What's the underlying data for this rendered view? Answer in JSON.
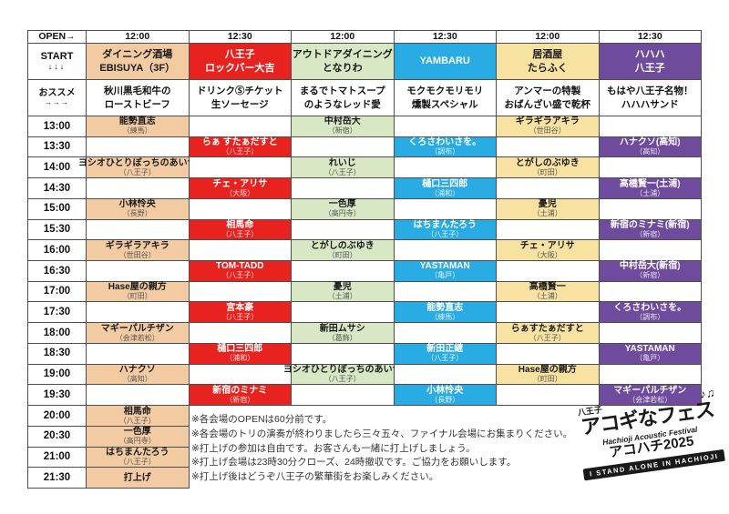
{
  "header": {
    "open_label": "OPEN→",
    "start_label": "START",
    "start_arrows": "↓↓↓",
    "osusume_label": "おススメ",
    "osusume_arrows": "→→→"
  },
  "venues": [
    {
      "open": "12:00",
      "name": "ダイニング酒場\nEBISUYA（3F）",
      "recommend": "秋川黒毛和牛の\nローストビーフ",
      "color": "#f3cba3",
      "text_color": "#1a1a1a"
    },
    {
      "open": "12:30",
      "name": "八王子\nロックバー大吉",
      "recommend": "ドリンクⓈチケット\n生ソーセージ",
      "color": "#e8231f",
      "text_color": "#ffffff"
    },
    {
      "open": "12:00",
      "name": "アウトドアダイニング\nとなりわ",
      "recommend": "まるでトマトスープ\nのようなレッド愛",
      "color": "#d8e7c4",
      "text_color": "#1a1a1a"
    },
    {
      "open": "12:30",
      "name": "YAMBARU",
      "recommend": "モクモクモリモリ\n燻製スペシャル",
      "color": "#29ace4",
      "text_color": "#ffffff"
    },
    {
      "open": "12:00",
      "name": "居酒屋\nたらふく",
      "recommend": "アンマーの特製\nおばんざい盛で乾杯",
      "color": "#f8e2a2",
      "text_color": "#1a1a1a"
    },
    {
      "open": "12:30",
      "name": "ハハハ\n八王子",
      "recommend": "もはや八王子名物！\nハハハサンド",
      "color": "#6e4b9d",
      "text_color": "#ffffff"
    }
  ],
  "schedule": [
    {
      "time": "13:00",
      "slots": [
        {
          "name": "能勢直志",
          "place": "（練馬）"
        },
        null,
        {
          "name": "中村岳大",
          "place": "（新宿）"
        },
        null,
        {
          "name": "ギラギラアキラ",
          "place": "（世田谷）"
        },
        null
      ]
    },
    {
      "time": "13:30",
      "slots": [
        null,
        {
          "name": "らぁ すたぁだすと",
          "place": "（八王子）"
        },
        null,
        {
          "name": "くろさわいさを。",
          "place": "（調布）"
        },
        null,
        {
          "name": "ハナクソ(高知)",
          "place": "（高知）"
        }
      ]
    },
    {
      "time": "14:00",
      "slots": [
        {
          "name": "ヨシオひとりぼっちのあいつ",
          "place": "（八王子）"
        },
        null,
        {
          "name": "れいじ",
          "place": "（八王子）"
        },
        null,
        {
          "name": "とがしのぶゆき",
          "place": "（町田）"
        },
        null
      ]
    },
    {
      "time": "14:30",
      "slots": [
        null,
        {
          "name": "チェ・アリサ",
          "place": "（大阪）"
        },
        null,
        {
          "name": "樋口三四郎",
          "place": "（浦和）"
        },
        null,
        {
          "name": "高橋賢一(土浦)",
          "place": "（土浦）"
        }
      ]
    },
    {
      "time": "15:00",
      "slots": [
        {
          "name": "小林怜央",
          "place": "（長野）"
        },
        null,
        {
          "name": "一色厚",
          "place": "（高円寺）"
        },
        null,
        {
          "name": "憂児",
          "place": "（土浦）"
        },
        null
      ]
    },
    {
      "time": "15:30",
      "slots": [
        null,
        {
          "name": "相馬命",
          "place": "（八王子）"
        },
        null,
        {
          "name": "はちまんたろう",
          "place": "（八王子）"
        },
        null,
        {
          "name": "新宿のミナミ(新宿)",
          "place": "（新宿）"
        }
      ]
    },
    {
      "time": "16:00",
      "slots": [
        {
          "name": "ギラギラアキラ",
          "place": "（世田谷）"
        },
        null,
        {
          "name": "とがしのぶゆき",
          "place": "（町田）"
        },
        null,
        {
          "name": "チェ・アリサ",
          "place": "（大阪）"
        },
        null
      ]
    },
    {
      "time": "16:30",
      "slots": [
        null,
        {
          "name": "TOM-TADD",
          "place": "（八王子）"
        },
        null,
        {
          "name": "YASTAMAN",
          "place": "（亀戸）"
        },
        null,
        {
          "name": "中村岳大(新宿)",
          "place": "（新宿）"
        }
      ]
    },
    {
      "time": "17:00",
      "slots": [
        {
          "name": "Hase屋の親方",
          "place": "（町田）"
        },
        null,
        {
          "name": "憂児",
          "place": "（土浦）"
        },
        null,
        {
          "name": "高橋賢一",
          "place": "（土浦）"
        },
        null
      ]
    },
    {
      "time": "17:30",
      "slots": [
        null,
        {
          "name": "宮本豪",
          "place": "（八王子）"
        },
        null,
        {
          "name": "能勢直志",
          "place": "（練馬）"
        },
        null,
        {
          "name": "くろさわいさを。",
          "place": "（調布）"
        }
      ]
    },
    {
      "time": "18:00",
      "slots": [
        {
          "name": "マギーパルチザン",
          "place": "（会津若松）"
        },
        null,
        {
          "name": "新田ムサシ",
          "place": "（葛飾）"
        },
        null,
        {
          "name": "らぁすたぁだすと",
          "place": "（八王子）"
        },
        null
      ]
    },
    {
      "time": "18:30",
      "slots": [
        null,
        {
          "name": "樋口三四郎",
          "place": "（浦和）"
        },
        null,
        {
          "name": "新田正継",
          "place": "（八王子）"
        },
        null,
        {
          "name": "YASTAMAN",
          "place": "（亀戸）"
        }
      ]
    },
    {
      "time": "19:00",
      "slots": [
        {
          "name": "ハナクソ",
          "place": "（高知）"
        },
        null,
        {
          "name": "ヨシオひとりぼっちのあいつ",
          "place": "（八王子）"
        },
        null,
        {
          "name": "Hase屋の親方",
          "place": "（町田）"
        },
        null
      ]
    },
    {
      "time": "19:30",
      "slots": [
        null,
        {
          "name": "新宿のミナミ",
          "place": "（新宿）"
        },
        null,
        {
          "name": "小林怜央",
          "place": "（長野）"
        },
        null,
        {
          "name": "マギーパルチザン",
          "place": "（会津若松）"
        }
      ]
    },
    {
      "time": "20:00",
      "slots": [
        {
          "name": "相馬命",
          "place": "（八王子）"
        },
        null,
        null,
        null,
        null,
        null
      ]
    },
    {
      "time": "20:30",
      "slots": [
        {
          "name": "一色厚",
          "place": "（高円寺）"
        },
        null,
        null,
        null,
        null,
        null
      ]
    },
    {
      "time": "21:00",
      "slots": [
        {
          "name": "はちまんたろう",
          "place": "（八王子）"
        },
        null,
        null,
        null,
        null,
        null
      ]
    },
    {
      "time": "21:30",
      "slots": [
        {
          "name": "打上げ",
          "place": ""
        },
        null,
        null,
        null,
        null,
        null
      ]
    }
  ],
  "notes": [
    "※各会場のOPENは60分前です。",
    "※各会場のトリの演奏が終わりましたら三々五々、ファイナル会場にお集まりください。",
    "※打上げの参加は自由です。お客さんも一緒に打上げしましょう。",
    "※打上げ会場は23時30分クローズ、24時撤収です。ご協力をお願いします。",
    "※打上げ後はどうぞ八王子の繁華街をお楽しみください。"
  ],
  "logo": {
    "hachioji": "八王子",
    "music_notes": "♪♫",
    "main": "アコギなフェス",
    "english": "Hachioji Acoustic Festival",
    "akohachi": "アコハチ2025",
    "banner": "I STAND ALONE IN HACHIOJI"
  }
}
